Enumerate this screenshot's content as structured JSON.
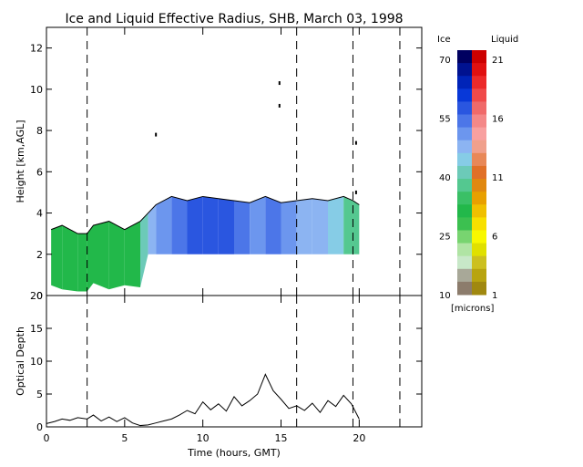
{
  "chart_data": [
    {
      "type": "heatmap",
      "title": "Ice and Liquid Effective Radius, SHB, March 03, 1998",
      "xlabel": "",
      "ylabel": "Height [km,AGL]",
      "xlim": [
        0,
        24
      ],
      "ylim": [
        0,
        13
      ],
      "xticks": [
        "0",
        "5",
        "10",
        "15",
        "20"
      ],
      "yticks": [
        "0",
        "2",
        "4",
        "6",
        "8",
        "10",
        "12"
      ],
      "event_lines_hours": [
        2.6,
        16.0,
        19.6,
        22.6
      ],
      "cloud_ice": {
        "x": [
          0.3,
          1,
          2,
          2.6,
          3,
          4,
          5,
          6,
          6.5,
          7,
          8,
          9,
          10,
          11,
          12,
          13,
          14,
          15,
          16,
          17,
          18,
          19,
          19.6,
          20
        ],
        "top": [
          3.2,
          3.4,
          3.0,
          3.0,
          3.4,
          3.6,
          3.2,
          3.6,
          4.0,
          4.4,
          4.8,
          4.6,
          4.8,
          4.7,
          4.6,
          4.5,
          4.8,
          4.5,
          4.6,
          4.7,
          4.6,
          4.8,
          4.6,
          4.4
        ],
        "base": [
          0.5,
          0.3,
          0.2,
          0.2,
          0.6,
          0.3,
          0.5,
          0.4,
          2.0,
          2.0,
          2.0,
          2.0,
          2.0,
          2.0,
          2.0,
          2.0,
          2.0,
          2.0,
          2.0,
          2.0,
          2.0,
          2.0,
          2.0,
          2.0
        ],
        "radius_microns": [
          28,
          30,
          32,
          30,
          29,
          31,
          30,
          33,
          44,
          48,
          52,
          54,
          60,
          55,
          58,
          50,
          50,
          54,
          45,
          50,
          44,
          40,
          36,
          35
        ]
      },
      "isolated_returns": [
        {
          "x": 7.0,
          "y": 7.8
        },
        {
          "x": 14.9,
          "y": 10.3
        },
        {
          "x": 14.9,
          "y": 9.2
        },
        {
          "x": 19.8,
          "y": 7.4
        },
        {
          "x": 19.8,
          "y": 5.0
        }
      ]
    },
    {
      "type": "line",
      "title": "",
      "xlabel": "Time (hours, GMT)",
      "ylabel": "Optical Depth",
      "xlim": [
        0,
        24
      ],
      "ylim": [
        0,
        20
      ],
      "xticks": [
        "0",
        "5",
        "10",
        "15",
        "20"
      ],
      "yticks": [
        "0",
        "5",
        "10",
        "15",
        "20"
      ],
      "x": [
        0,
        0.5,
        1,
        1.5,
        2,
        2.6,
        3,
        3.5,
        4,
        4.5,
        5,
        5.5,
        6,
        6.5,
        7,
        7.5,
        8,
        8.5,
        9,
        9.5,
        10,
        10.5,
        11,
        11.5,
        12,
        12.5,
        13,
        13.5,
        14,
        14.5,
        15,
        15.5,
        16,
        16.5,
        17,
        17.5,
        18,
        18.5,
        19,
        19.5,
        20
      ],
      "y": [
        0.5,
        0.8,
        1.2,
        1.0,
        1.4,
        1.2,
        1.8,
        0.9,
        1.5,
        0.8,
        1.4,
        0.6,
        0.2,
        0.3,
        0.6,
        0.9,
        1.2,
        1.8,
        2.5,
        2.0,
        3.8,
        2.6,
        3.5,
        2.4,
        4.6,
        3.2,
        4.0,
        5.0,
        8.0,
        5.5,
        4.2,
        2.8,
        3.2,
        2.5,
        3.6,
        2.2,
        4.0,
        3.1,
        4.8,
        3.5,
        1.2
      ]
    }
  ],
  "colorbar": {
    "ice_label": "Ice",
    "liquid_label": "Liquid",
    "units": "[microns]",
    "ice_ticks": [
      "70",
      "55",
      "40",
      "25",
      "10"
    ],
    "liquid_ticks": [
      "21",
      "16",
      "11",
      "6",
      "1"
    ],
    "ice_range": [
      10,
      70
    ],
    "liquid_range": [
      1,
      21
    ],
    "ice_colors": [
      "#000060",
      "#001290",
      "#0024b8",
      "#0838d8",
      "#2a56e0",
      "#4c76e8",
      "#6c96ee",
      "#8cb4f2",
      "#86cce6",
      "#6ccab8",
      "#54c890",
      "#3ac066",
      "#22b84a",
      "#3cc050",
      "#78d470",
      "#b0e4a4",
      "#c8e8c8",
      "#a8a898",
      "#8c7c6c"
    ],
    "liquid_colors": [
      "#cc0000",
      "#e01010",
      "#ec2a2a",
      "#f04a4a",
      "#f06a6a",
      "#f48888",
      "#f8a0a0",
      "#f0a08c",
      "#e88858",
      "#e07028",
      "#e08810",
      "#e8a000",
      "#f0c000",
      "#f8e000",
      "#f8f800",
      "#e0e000",
      "#ccc020",
      "#b8a410",
      "#a08810"
    ]
  },
  "colors": {
    "ice_outline": "#000000",
    "event_line": "#000000",
    "optical_depth_line": "#000000"
  }
}
